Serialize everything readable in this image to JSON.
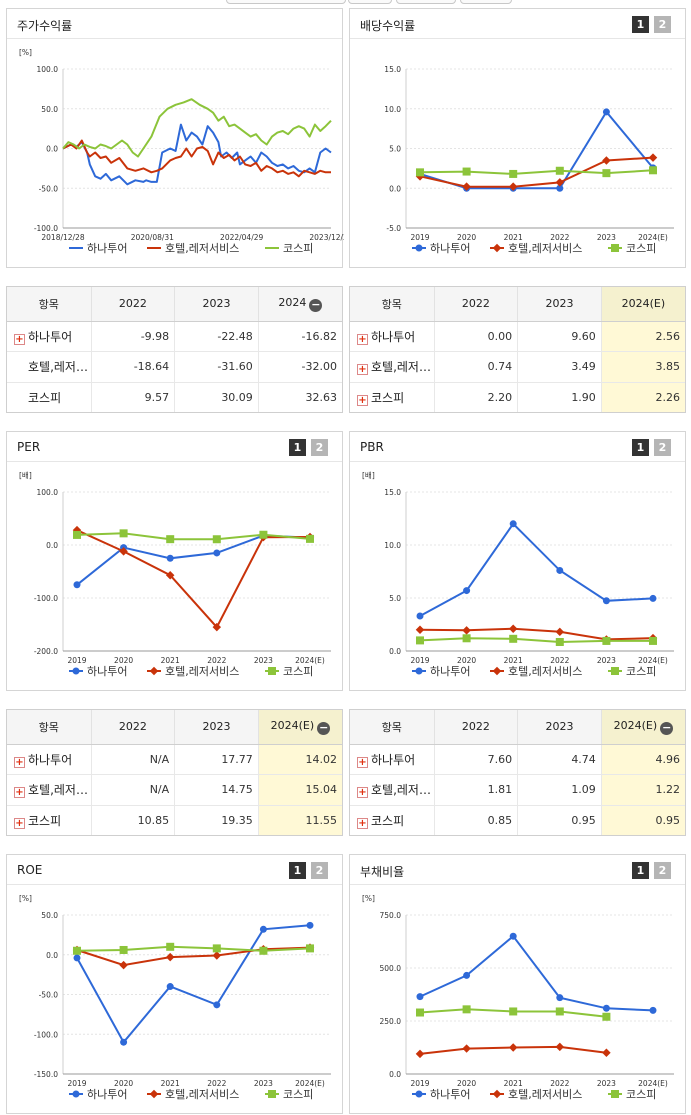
{
  "colors": {
    "hana": "#2e69d8",
    "hotel": "#c9330a",
    "kospi": "#8cc43a"
  },
  "legend": [
    "하나투어",
    "호텔,레저서비스",
    "코스피"
  ],
  "pages": [
    "1",
    "2"
  ],
  "panels": [
    {
      "title": "주가수익률",
      "unit": "[%]",
      "paged": false
    },
    {
      "title": "배당수익률",
      "unit": "",
      "paged": true
    },
    {
      "title": "PER",
      "unit": "[배]",
      "paged": true
    },
    {
      "title": "PBR",
      "unit": "[배]",
      "paged": true
    },
    {
      "title": "ROE",
      "unit": "[%]",
      "paged": true
    },
    {
      "title": "부채비율",
      "unit": "[%]",
      "paged": true
    }
  ],
  "chart_data": [
    {
      "type": "line",
      "title": "주가수익률",
      "ylabel": "[%]",
      "ylim": [
        -100,
        100
      ],
      "yticks": [
        "100.0",
        "50.0",
        "0.0",
        "-50.0",
        "-100.0"
      ],
      "xticks": [
        "2018/12/28",
        "2020/08/31",
        "2022/04/29",
        "2023/12/28"
      ],
      "x_range": [
        0,
        100
      ],
      "series": [
        {
          "name": "하나투어",
          "x": [
            0,
            3,
            5,
            7,
            9,
            10,
            12,
            14,
            16,
            18,
            21,
            24,
            27,
            30,
            31,
            33,
            35,
            37,
            40,
            42,
            44,
            46,
            48,
            50,
            52,
            54,
            56,
            58,
            59,
            61,
            63,
            65,
            66,
            68,
            70,
            72,
            74,
            76,
            78,
            80,
            82,
            84,
            86,
            88,
            90,
            92,
            94,
            96,
            98,
            100
          ],
          "y": [
            0,
            5,
            2,
            8,
            -5,
            -20,
            -35,
            -38,
            -32,
            -40,
            -35,
            -45,
            -40,
            -42,
            -40,
            -42,
            -42,
            -5,
            0,
            -3,
            30,
            10,
            20,
            15,
            5,
            28,
            20,
            8,
            -10,
            -5,
            -12,
            -5,
            -20,
            -15,
            -10,
            -18,
            -5,
            -10,
            -18,
            -22,
            -20,
            -25,
            -22,
            -28,
            -30,
            -25,
            -30,
            -5,
            0,
            -5
          ]
        },
        {
          "name": "호텔,레저서비스",
          "x": [
            0,
            3,
            5,
            7,
            9,
            10,
            12,
            14,
            16,
            18,
            21,
            24,
            27,
            30,
            33,
            35,
            37,
            40,
            42,
            44,
            46,
            48,
            50,
            52,
            54,
            56,
            58,
            60,
            62,
            64,
            66,
            68,
            70,
            72,
            74,
            76,
            78,
            80,
            82,
            84,
            86,
            88,
            90,
            92,
            94,
            96,
            98,
            100
          ],
          "y": [
            0,
            5,
            0,
            10,
            -5,
            -10,
            -5,
            -12,
            -10,
            -18,
            -12,
            -25,
            -28,
            -25,
            -30,
            -28,
            -25,
            -15,
            -12,
            -10,
            0,
            -10,
            0,
            2,
            -3,
            -20,
            -5,
            -12,
            -8,
            -15,
            -10,
            -20,
            -22,
            -18,
            -28,
            -22,
            -25,
            -30,
            -28,
            -32,
            -30,
            -35,
            -28,
            -30,
            -32,
            -28,
            -30,
            -30
          ]
        },
        {
          "name": "코스피",
          "x": [
            0,
            2,
            4,
            6,
            8,
            10,
            12,
            14,
            16,
            18,
            20,
            22,
            24,
            26,
            28,
            30,
            33,
            36,
            39,
            42,
            45,
            48,
            51,
            54,
            56,
            58,
            60,
            62,
            64,
            66,
            68,
            70,
            72,
            74,
            76,
            78,
            80,
            82,
            84,
            86,
            88,
            90,
            92,
            94,
            96,
            98,
            100
          ],
          "y": [
            0,
            8,
            5,
            0,
            5,
            2,
            0,
            5,
            3,
            0,
            5,
            10,
            5,
            -5,
            -10,
            0,
            15,
            40,
            50,
            55,
            58,
            62,
            55,
            50,
            45,
            35,
            40,
            28,
            30,
            25,
            20,
            15,
            18,
            10,
            5,
            15,
            20,
            22,
            18,
            25,
            28,
            25,
            15,
            30,
            22,
            28,
            35
          ]
        }
      ]
    },
    {
      "type": "line",
      "title": "배당수익률",
      "ylim": [
        -5,
        15
      ],
      "yticks": [
        "15.0",
        "10.0",
        "5.0",
        "0.0",
        "-5.0"
      ],
      "categories": [
        "2019",
        "2020",
        "2021",
        "2022",
        "2023",
        "2024(E)"
      ],
      "series": [
        {
          "name": "하나투어",
          "values": [
            1.8,
            0.0,
            0.0,
            0.0,
            9.6,
            2.56
          ]
        },
        {
          "name": "호텔,레저서비스",
          "values": [
            1.5,
            0.2,
            0.2,
            0.74,
            3.49,
            3.85
          ]
        },
        {
          "name": "코스피",
          "values": [
            2.0,
            2.1,
            1.8,
            2.2,
            1.9,
            2.26
          ]
        }
      ]
    },
    {
      "type": "line",
      "title": "PER",
      "ylabel": "[배]",
      "ylim": [
        -200,
        100
      ],
      "yticks": [
        "100.0",
        "0.0",
        "-100.0",
        "-200.0"
      ],
      "categories": [
        "2019",
        "2020",
        "2021",
        "2022",
        "2023",
        "2024(E)"
      ],
      "series": [
        {
          "name": "하나투어",
          "values": [
            -75,
            -5,
            -25,
            -15,
            17.77,
            14.02
          ]
        },
        {
          "name": "호텔,레저서비스",
          "values": [
            28,
            -12,
            -57,
            -155,
            14.75,
            15.04
          ]
        },
        {
          "name": "코스피",
          "values": [
            19,
            22,
            11,
            10.85,
            19.35,
            11.55
          ]
        }
      ]
    },
    {
      "type": "line",
      "title": "PBR",
      "ylabel": "[배]",
      "ylim": [
        0,
        15
      ],
      "yticks": [
        "15.0",
        "10.0",
        "5.0",
        "0.0"
      ],
      "categories": [
        "2019",
        "2020",
        "2021",
        "2022",
        "2023",
        "2024(E)"
      ],
      "series": [
        {
          "name": "하나투어",
          "values": [
            3.3,
            5.7,
            12.0,
            7.6,
            4.74,
            4.96
          ]
        },
        {
          "name": "호텔,레저서비스",
          "values": [
            2.0,
            1.95,
            2.1,
            1.81,
            1.09,
            1.22
          ]
        },
        {
          "name": "코스피",
          "values": [
            1.0,
            1.2,
            1.15,
            0.85,
            0.95,
            0.95
          ]
        }
      ]
    },
    {
      "type": "line",
      "title": "ROE",
      "ylabel": "[%]",
      "ylim": [
        -150,
        50
      ],
      "yticks": [
        "50.0",
        "0.0",
        "-50.0",
        "-100.0",
        "-150.0"
      ],
      "categories": [
        "2019",
        "2020",
        "2021",
        "2022",
        "2023",
        "2024(E)"
      ],
      "series": [
        {
          "name": "하나투어",
          "values": [
            -4,
            -110,
            -40,
            -63,
            32,
            37
          ]
        },
        {
          "name": "호텔,레저서비스",
          "values": [
            6,
            -13,
            -3,
            -1,
            7,
            9
          ]
        },
        {
          "name": "코스피",
          "values": [
            5,
            6,
            10,
            8,
            5,
            8
          ]
        }
      ]
    },
    {
      "type": "line",
      "title": "부채비율",
      "ylabel": "[%]",
      "ylim": [
        0,
        750
      ],
      "yticks": [
        "750.0",
        "500.0",
        "250.0",
        "0.0"
      ],
      "categories": [
        "2019",
        "2020",
        "2021",
        "2022",
        "2023",
        "2024(E)"
      ],
      "series": [
        {
          "name": "하나투어",
          "values": [
            365,
            465,
            650,
            360,
            310,
            300
          ]
        },
        {
          "name": "호텔,레저서비스",
          "values": [
            95,
            120,
            125,
            128,
            100,
            null
          ]
        },
        {
          "name": "코스피",
          "values": [
            290,
            305,
            295,
            295,
            270,
            null
          ]
        }
      ]
    }
  ],
  "tables": [
    {
      "header": [
        "항목",
        "2022",
        "2023",
        "2024"
      ],
      "highlight_last": false,
      "rows": [
        {
          "label": "하나투어",
          "plus": true,
          "values": [
            "-9.98",
            "-22.48",
            "-16.82"
          ]
        },
        {
          "label": "호텔,레저…",
          "plus": false,
          "values": [
            "-18.64",
            "-31.60",
            "-32.00"
          ]
        },
        {
          "label": "코스피",
          "plus": false,
          "values": [
            "9.57",
            "30.09",
            "32.63"
          ]
        }
      ]
    },
    {
      "header": [
        "항목",
        "2022",
        "2023",
        "2024(E)"
      ],
      "highlight_last": true,
      "rows": [
        {
          "label": "하나투어",
          "plus": true,
          "values": [
            "0.00",
            "9.60",
            "2.56"
          ]
        },
        {
          "label": "호텔,레저…",
          "plus": true,
          "values": [
            "0.74",
            "3.49",
            "3.85"
          ]
        },
        {
          "label": "코스피",
          "plus": true,
          "values": [
            "2.20",
            "1.90",
            "2.26"
          ]
        }
      ]
    },
    {
      "header": [
        "항목",
        "2022",
        "2023",
        "2024(E)"
      ],
      "highlight_last": true,
      "rows": [
        {
          "label": "하나투어",
          "plus": true,
          "values": [
            "N/A",
            "17.77",
            "14.02"
          ]
        },
        {
          "label": "호텔,레저…",
          "plus": true,
          "values": [
            "N/A",
            "14.75",
            "15.04"
          ]
        },
        {
          "label": "코스피",
          "plus": true,
          "values": [
            "10.85",
            "19.35",
            "11.55"
          ]
        }
      ]
    },
    {
      "header": [
        "항목",
        "2022",
        "2023",
        "2024(E)"
      ],
      "highlight_last": true,
      "rows": [
        {
          "label": "하나투어",
          "plus": true,
          "values": [
            "7.60",
            "4.74",
            "4.96"
          ]
        },
        {
          "label": "호텔,레저…",
          "plus": true,
          "values": [
            "1.81",
            "1.09",
            "1.22"
          ]
        },
        {
          "label": "코스피",
          "plus": true,
          "values": [
            "0.85",
            "0.95",
            "0.95"
          ]
        }
      ]
    }
  ]
}
